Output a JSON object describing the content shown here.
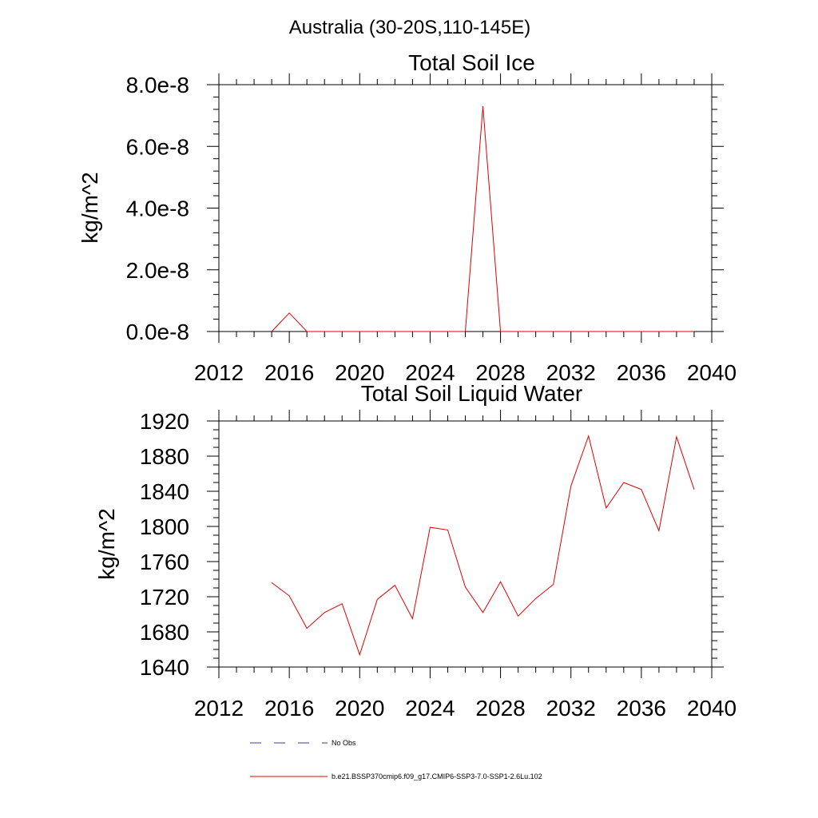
{
  "figure_title": "Australia (30-20S,110-145E)",
  "legend": {
    "entries": [
      {
        "label": "No Obs",
        "color": "#3c3c8c",
        "style": "dashed"
      },
      {
        "label": "b.e21.BSSP370cmip6.f09_g17.CMIP6-SSP3-7.0-SSP1-2.6Lu.102",
        "color": "#e00000",
        "style": "solid"
      }
    ]
  },
  "chart_data": [
    {
      "type": "line",
      "title": "Total Soil Ice",
      "xlabel": "",
      "ylabel": "kg/m^2",
      "xlim": [
        2012,
        2040
      ],
      "ylim": [
        0,
        8e-08
      ],
      "x_ticks": [
        2012,
        2016,
        2020,
        2024,
        2028,
        2032,
        2036,
        2040
      ],
      "y_ticks": [
        0,
        2e-08,
        4e-08,
        6e-08,
        8e-08
      ],
      "y_tick_labels": [
        "0.0e-8",
        "2.0e-8",
        "4.0e-8",
        "6.0e-8",
        "8.0e-8"
      ],
      "grid": false,
      "series": [
        {
          "name": "b.e21.BSSP370cmip6.f09_g17.CMIP6-SSP3-7.0-SSP1-2.6Lu.102",
          "color": "#e00000",
          "x": [
            2015,
            2016,
            2017,
            2018,
            2019,
            2020,
            2021,
            2022,
            2023,
            2024,
            2025,
            2026,
            2027,
            2028,
            2029,
            2030,
            2031,
            2032,
            2033,
            2034,
            2035,
            2036,
            2037,
            2038,
            2039
          ],
          "values": [
            0,
            6e-09,
            0,
            0,
            0,
            0,
            0,
            0,
            0,
            0,
            0,
            0,
            7.3e-08,
            0,
            0,
            0,
            0,
            0,
            0,
            0,
            0,
            0,
            0,
            0,
            0
          ]
        }
      ]
    },
    {
      "type": "line",
      "title": "Total Soil Liquid Water",
      "xlabel": "",
      "ylabel": "kg/m^2",
      "xlim": [
        2012,
        2040
      ],
      "ylim": [
        1640,
        1920
      ],
      "x_ticks": [
        2012,
        2016,
        2020,
        2024,
        2028,
        2032,
        2036,
        2040
      ],
      "y_ticks": [
        1640,
        1680,
        1720,
        1760,
        1800,
        1840,
        1880,
        1920
      ],
      "y_tick_labels": [
        "1640",
        "1680",
        "1720",
        "1760",
        "1800",
        "1840",
        "1880",
        "1920"
      ],
      "grid": false,
      "series": [
        {
          "name": "b.e21.BSSP370cmip6.f09_g17.CMIP6-SSP3-7.0-SSP1-2.6Lu.102",
          "color": "#e00000",
          "x": [
            2015,
            2016,
            2017,
            2018,
            2019,
            2020,
            2021,
            2022,
            2023,
            2024,
            2025,
            2026,
            2027,
            2028,
            2029,
            2030,
            2031,
            2032,
            2033,
            2034,
            2035,
            2036,
            2037,
            2038,
            2039
          ],
          "values": [
            1736,
            1721,
            1684,
            1702,
            1712,
            1654,
            1717,
            1733,
            1695,
            1799,
            1796,
            1731,
            1702,
            1737,
            1698,
            1718,
            1734,
            1846,
            1903,
            1821,
            1850,
            1842,
            1795,
            1902,
            1842
          ]
        }
      ]
    }
  ]
}
